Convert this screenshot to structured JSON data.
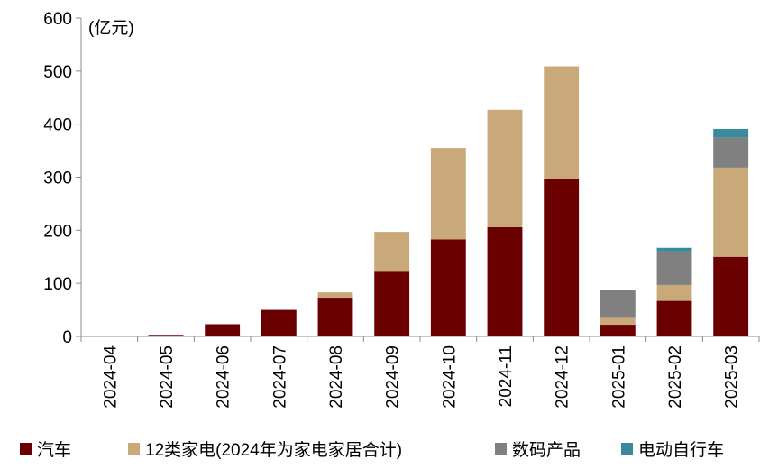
{
  "chart_data": {
    "type": "bar",
    "stacked": true,
    "unit_label": "(亿元)",
    "categories": [
      "2024-04",
      "2024-05",
      "2024-06",
      "2024-07",
      "2024-08",
      "2024-09",
      "2024-10",
      "2024-11",
      "2024-12",
      "2025-01",
      "2025-02",
      "2025-03"
    ],
    "series": [
      {
        "name": "汽车",
        "color": "#6B0000",
        "values": [
          0,
          3,
          23,
          50,
          73,
          122,
          183,
          206,
          297,
          22,
          67,
          150
        ]
      },
      {
        "name": "12类家电(2024年为家电家居合计)",
        "color": "#C9A97A",
        "values": [
          0,
          0,
          0,
          0,
          10,
          75,
          172,
          221,
          212,
          13,
          30,
          168
        ]
      },
      {
        "name": "数码产品",
        "color": "#808080",
        "values": [
          0,
          0,
          0,
          0,
          0,
          0,
          0,
          0,
          0,
          52,
          63,
          57
        ]
      },
      {
        "name": "电动自行车",
        "color": "#3A8A9C",
        "values": [
          0,
          0,
          0,
          0,
          0,
          0,
          0,
          0,
          0,
          0,
          7,
          16
        ]
      }
    ],
    "ylim": [
      0,
      600
    ],
    "yticks": [
      0,
      100,
      200,
      300,
      400,
      500,
      600
    ],
    "grid": false,
    "legend_position": "bottom"
  }
}
